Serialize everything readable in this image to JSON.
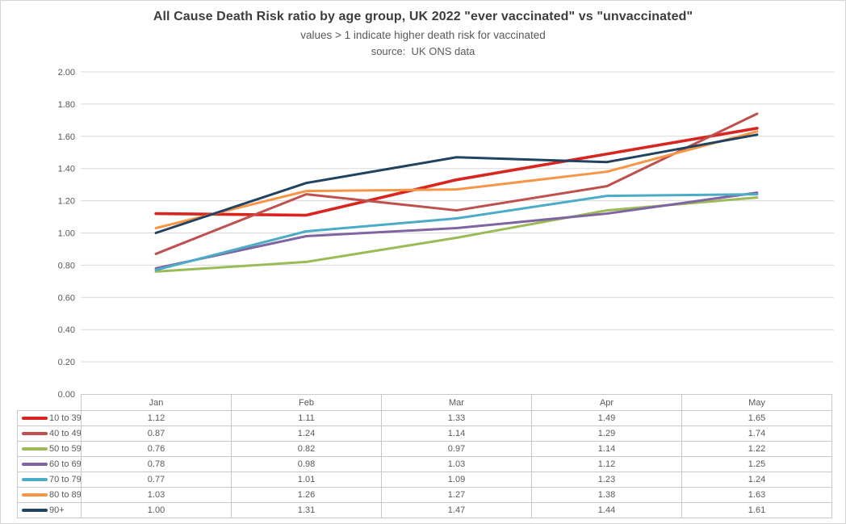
{
  "title": "All Cause Death Risk ratio by age group, UK 2022 \"ever vaccinated\" vs \"unvaccinated\"",
  "subtitle": "values > 1 indicate higher death risk for vaccinated",
  "source_note": "source:  UK ONS data",
  "colors": {
    "gridline": "#d9d9d9",
    "table_border": "#c9c9c9",
    "axis_text": "#595959",
    "title_text": "#3d3d3d"
  },
  "chart_data": {
    "type": "line",
    "title": "All Cause Death Risk ratio by age group, UK 2022 \"ever vaccinated\" vs \"unvaccinated\"",
    "subtitle": "values > 1 indicate higher death risk for vaccinated",
    "source": "source:  UK ONS data",
    "categories": [
      "Jan",
      "Feb",
      "Mar",
      "Apr",
      "May"
    ],
    "series": [
      {
        "name": "10 to 39",
        "color": "#d9251f",
        "values": [
          1.12,
          1.11,
          1.33,
          1.49,
          1.65
        ]
      },
      {
        "name": "40 to 49",
        "color": "#c0504d",
        "values": [
          0.87,
          1.24,
          1.14,
          1.29,
          1.74
        ]
      },
      {
        "name": "50 to 59",
        "color": "#9bbb59",
        "values": [
          0.76,
          0.82,
          0.97,
          1.14,
          1.22
        ]
      },
      {
        "name": "60 to 69",
        "color": "#8064a2",
        "values": [
          0.78,
          0.98,
          1.03,
          1.12,
          1.25
        ]
      },
      {
        "name": "70 to 79",
        "color": "#4bacc6",
        "values": [
          0.77,
          1.01,
          1.09,
          1.23,
          1.24
        ]
      },
      {
        "name": "80 to 89",
        "color": "#f79646",
        "values": [
          1.03,
          1.26,
          1.27,
          1.38,
          1.63
        ]
      },
      {
        "name": "90+",
        "color": "#22425f",
        "values": [
          1.0,
          1.31,
          1.47,
          1.44,
          1.61
        ]
      }
    ],
    "y_ticks": [
      "2.00",
      "1.80",
      "1.60",
      "1.40",
      "1.20",
      "1.00",
      "0.80",
      "0.60",
      "0.40",
      "0.20",
      "0.00"
    ],
    "ylim": [
      0,
      2.0
    ],
    "grid": true,
    "legend_position": "table-left",
    "data_table": true,
    "value_format_decimals": 2
  }
}
